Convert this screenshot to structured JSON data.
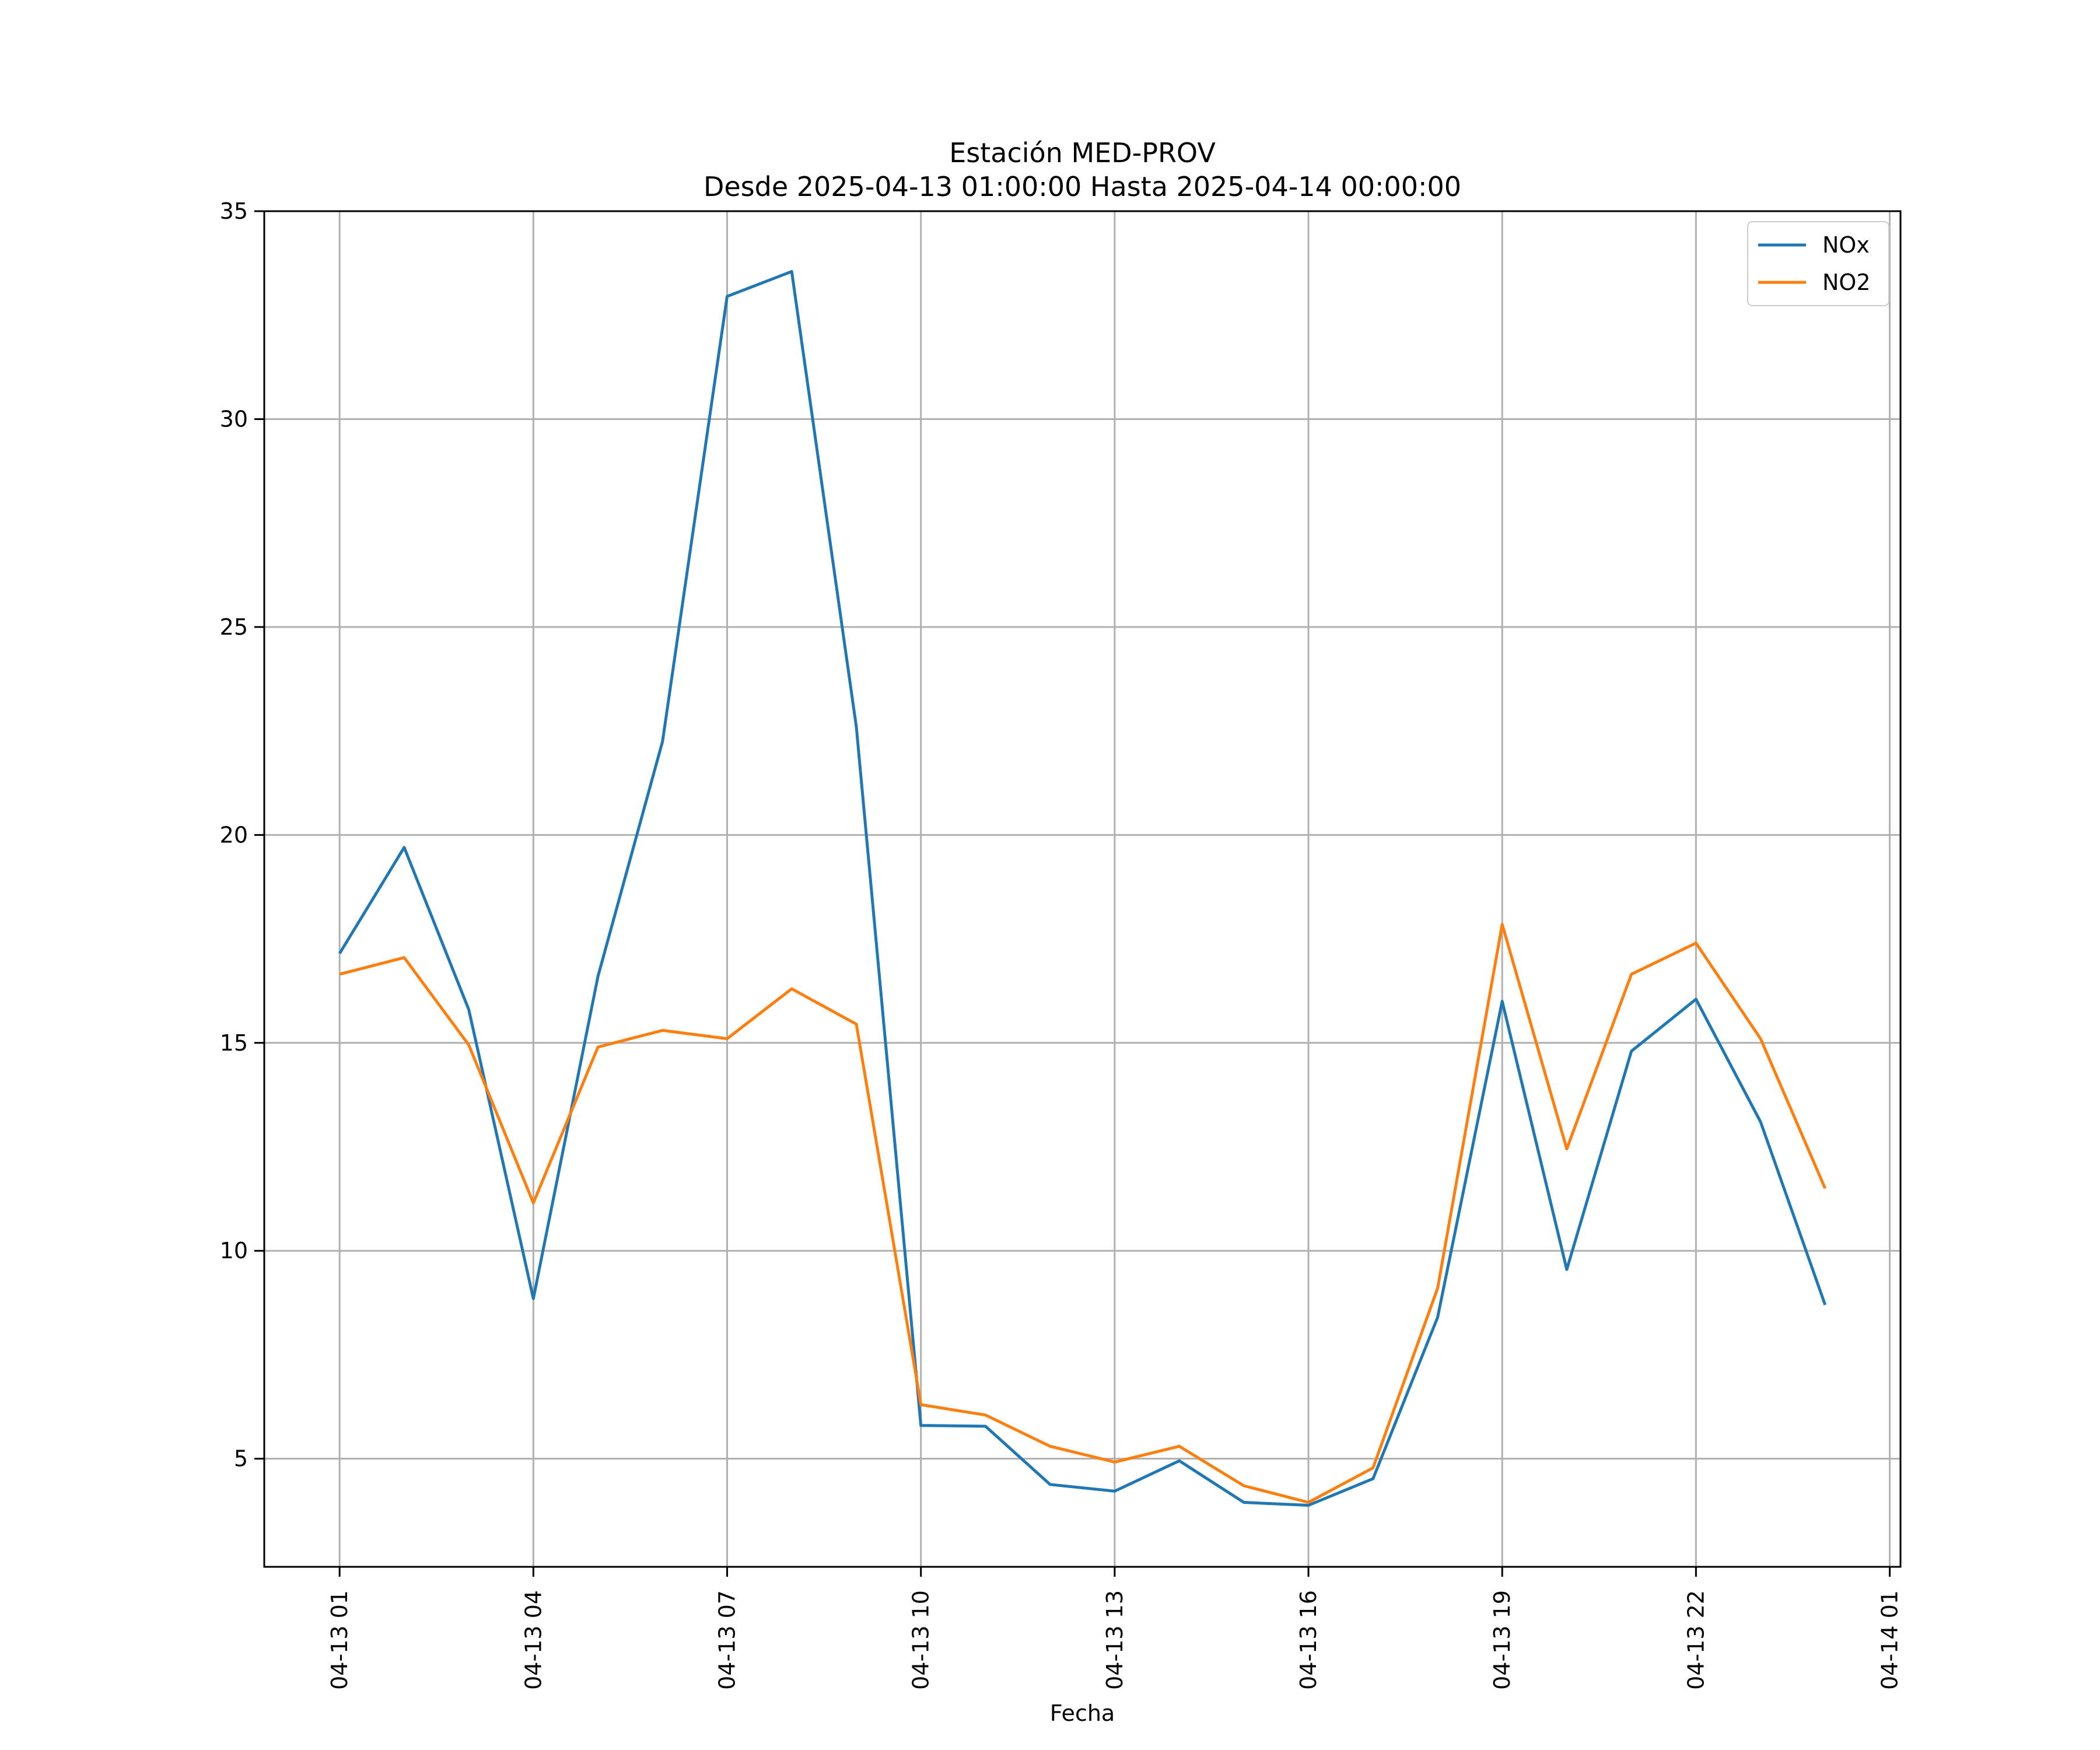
{
  "chart_data": {
    "type": "line",
    "title": "Estación MED-PROV",
    "subtitle": "Desde 2025-04-13 01:00:00 Hasta 2025-04-14 00:00:00",
    "xlabel": "Fecha",
    "ylabel": "",
    "x": [
      "2025-04-13 01:00",
      "2025-04-13 02:00",
      "2025-04-13 03:00",
      "2025-04-13 04:00",
      "2025-04-13 05:00",
      "2025-04-13 06:00",
      "2025-04-13 07:00",
      "2025-04-13 08:00",
      "2025-04-13 09:00",
      "2025-04-13 10:00",
      "2025-04-13 11:00",
      "2025-04-13 12:00",
      "2025-04-13 13:00",
      "2025-04-13 14:00",
      "2025-04-13 15:00",
      "2025-04-13 16:00",
      "2025-04-13 17:00",
      "2025-04-13 18:00",
      "2025-04-13 19:00",
      "2025-04-13 20:00",
      "2025-04-13 21:00",
      "2025-04-13 22:00",
      "2025-04-13 23:00",
      "2025-04-14 00:00"
    ],
    "series": [
      {
        "name": "NOx",
        "color": "#1f77b4",
        "values": [
          17.15,
          19.7,
          15.8,
          8.85,
          16.6,
          22.25,
          32.95,
          33.55,
          22.6,
          5.8,
          5.78,
          4.38,
          4.22,
          4.95,
          3.95,
          3.88,
          4.52,
          8.4,
          16.0,
          9.55,
          14.8,
          16.05,
          13.1,
          8.7
        ]
      },
      {
        "name": "NO2",
        "color": "#ff7f0e",
        "values": [
          16.65,
          17.05,
          14.95,
          11.15,
          14.9,
          15.3,
          15.1,
          16.3,
          15.45,
          6.3,
          6.05,
          5.3,
          4.92,
          5.3,
          4.35,
          3.95,
          4.78,
          9.1,
          17.85,
          12.45,
          16.65,
          17.4,
          15.1,
          11.5
        ]
      }
    ],
    "xticks": [
      {
        "at": "2025-04-13 01:00",
        "label": "04-13 01"
      },
      {
        "at": "2025-04-13 04:00",
        "label": "04-13 04"
      },
      {
        "at": "2025-04-13 07:00",
        "label": "04-13 07"
      },
      {
        "at": "2025-04-13 10:00",
        "label": "04-13 10"
      },
      {
        "at": "2025-04-13 13:00",
        "label": "04-13 13"
      },
      {
        "at": "2025-04-13 16:00",
        "label": "04-13 16"
      },
      {
        "at": "2025-04-13 19:00",
        "label": "04-13 19"
      },
      {
        "at": "2025-04-13 22:00",
        "label": "04-13 22"
      },
      {
        "at": "2025-04-14 01:00",
        "label": "04-14 01"
      }
    ],
    "xlim": [
      "2025-04-12 23:50",
      "2025-04-14 01:10"
    ],
    "yticks": [
      5,
      10,
      15,
      20,
      25,
      30,
      35
    ],
    "ylim": [
      2.4,
      35.0
    ],
    "grid": true,
    "legend_position": "top-right"
  }
}
